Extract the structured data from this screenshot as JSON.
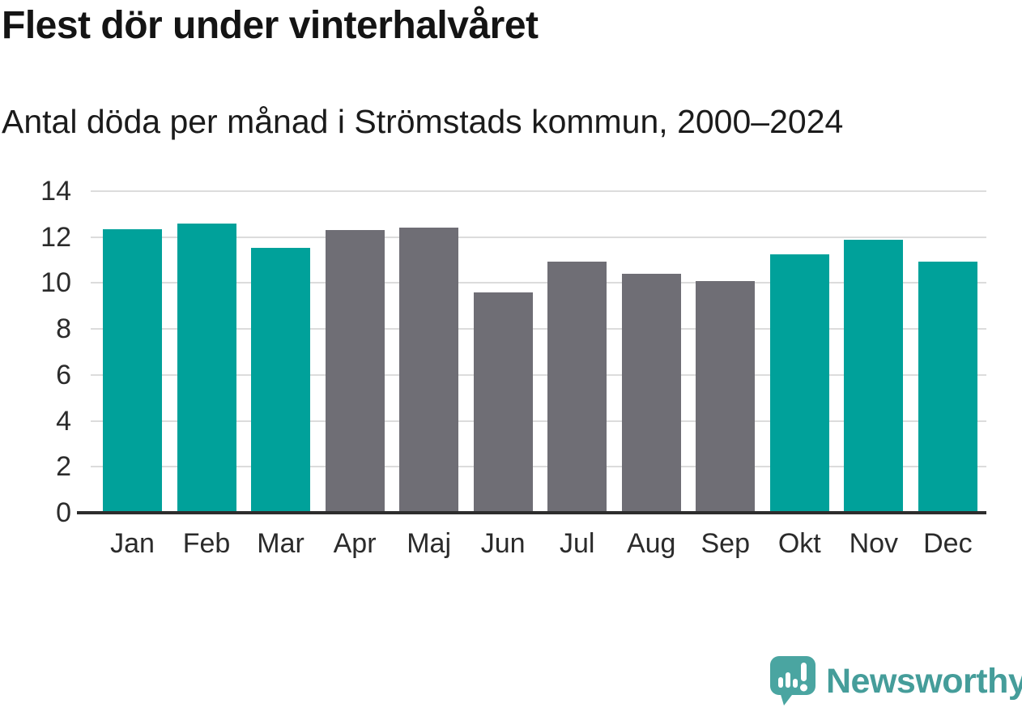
{
  "chart_data": {
    "type": "bar",
    "title": "Flest dör under vinterhalvåret",
    "subtitle": "Antal döda per månad i Strömstads kommun, 2000–2024",
    "categories": [
      "Jan",
      "Feb",
      "Mar",
      "Apr",
      "Maj",
      "Jun",
      "Jul",
      "Aug",
      "Sep",
      "Okt",
      "Nov",
      "Dec"
    ],
    "values": [
      12.35,
      12.6,
      11.55,
      12.3,
      12.4,
      9.6,
      10.95,
      10.4,
      10.1,
      11.25,
      11.9,
      10.95
    ],
    "bar_seasons": [
      "winter",
      "winter",
      "winter",
      "summer",
      "summer",
      "summer",
      "summer",
      "summer",
      "summer",
      "winter",
      "winter",
      "winter"
    ],
    "season_colors": {
      "winter": "#00a19a",
      "summer": "#6f6e75"
    },
    "xlabel": "",
    "ylabel": "",
    "yticks": [
      0,
      2,
      4,
      6,
      8,
      10,
      12,
      14
    ],
    "ylim": [
      0,
      14
    ],
    "grid": true,
    "legend": false,
    "grid_color": "#dcdcdc",
    "axis_color": "#2d2d2d",
    "tick_label_color": "#2b2b2b"
  },
  "branding": {
    "logo_text": "Newsworthy",
    "logo_icon": "newsworthy-speech-bubble-bar-chart-icon",
    "logo_bubble_color": "#4aa5a1",
    "logo_glyph_color": "#ffffff",
    "logo_text_color": "#459d9a"
  }
}
